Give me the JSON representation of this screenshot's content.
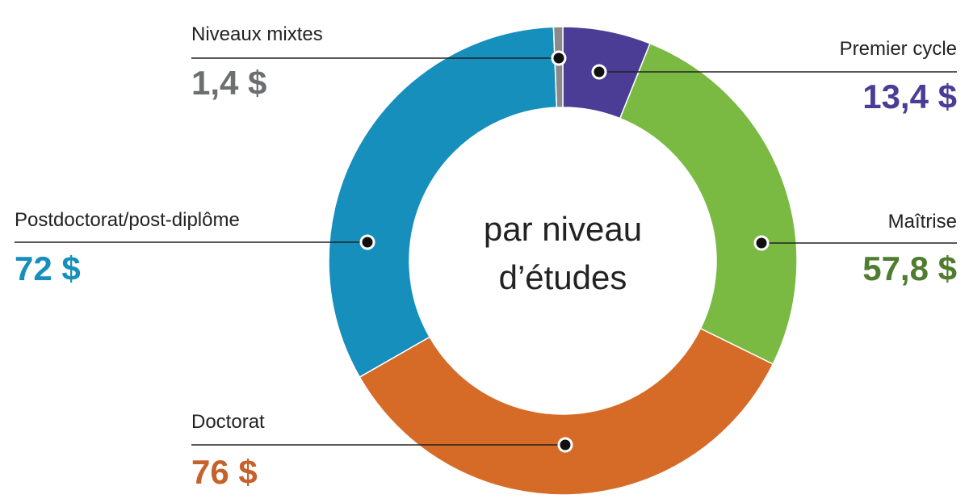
{
  "chart_data": {
    "type": "donut",
    "center_text": [
      "par niveau",
      "d’études"
    ],
    "categories": [
      "Premier cycle",
      "Maîtrise",
      "Doctorat",
      "Postdoctorat/post-diplôme",
      "Niveaux mixtes"
    ],
    "values": [
      13.4,
      57.8,
      76,
      72,
      1.4
    ],
    "value_labels": [
      "13,4 $",
      "57,8 $",
      "76 $",
      "72 $",
      "1,4 $"
    ],
    "colors": [
      "#4b3c96",
      "#7aba43",
      "#d66b28",
      "#168fbc",
      "#8a8a8a"
    ],
    "label_colors": [
      "#4b3c96",
      "#4f7c2f",
      "#c5622b",
      "#168fbc",
      "#6d6e70"
    ]
  }
}
